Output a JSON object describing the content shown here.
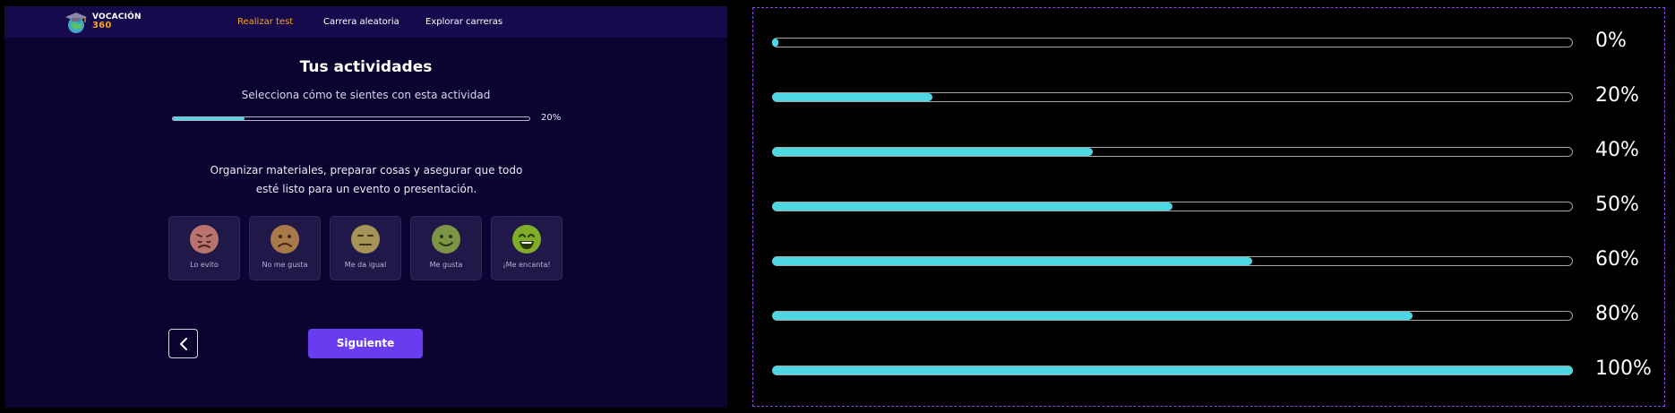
{
  "brand": {
    "line1": "VOCACIÓN",
    "line2": "360"
  },
  "nav": {
    "items": [
      {
        "label": "Realizar test",
        "active": true
      },
      {
        "label": "Carrera aleatoria",
        "active": false
      },
      {
        "label": "Explorar carreras",
        "active": false
      }
    ]
  },
  "main": {
    "title": "Tus actividades",
    "subtitle": "Selecciona cómo te sientes con esta actividad",
    "progress": {
      "value": 0.2,
      "label": "20%"
    },
    "question_line1": "Organizar materiales, preparar cosas y asegurar que todo",
    "question_line2": "esté listo para un evento o presentación.",
    "options": [
      {
        "label": "Lo evito",
        "face": "very-sad-face-icon",
        "color": "#b8736e"
      },
      {
        "label": "No me gusta",
        "face": "sad-face-icon",
        "color": "#a87a4a"
      },
      {
        "label": "Me da igual",
        "face": "neutral-face-icon",
        "color": "#a59357"
      },
      {
        "label": "Me gusta",
        "face": "smile-face-icon",
        "color": "#7c9544"
      },
      {
        "label": "¡Me encanta!",
        "face": "big-smile-face-icon",
        "color": "#7fad2a"
      }
    ],
    "next_label": "Siguiente"
  },
  "showcase": {
    "bars": [
      {
        "value": 0.0,
        "label": "0%"
      },
      {
        "value": 0.2,
        "label": "20%"
      },
      {
        "value": 0.4,
        "label": "40%"
      },
      {
        "value": 0.5,
        "label": "50%"
      },
      {
        "value": 0.6,
        "label": "60%"
      },
      {
        "value": 0.8,
        "label": "80%"
      },
      {
        "value": 1.0,
        "label": "100%"
      }
    ]
  },
  "colors": {
    "accent": "#4cd7e3",
    "primary_button": "#6a3cf0",
    "nav_active": "#f5a623",
    "app_background": "#0c0430"
  }
}
